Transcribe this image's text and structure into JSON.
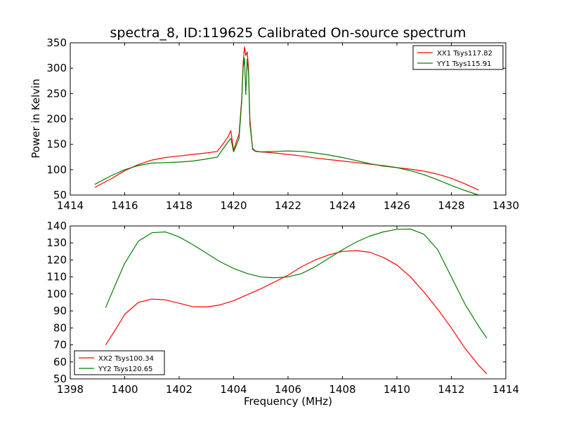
{
  "chart_data": [
    {
      "type": "line",
      "title": "spectra_8, ID:119625 Calibrated On-source spectrum",
      "xlabel": "",
      "ylabel": "Power in Kelvin",
      "xlim": [
        1414,
        1430
      ],
      "ylim": [
        50,
        350
      ],
      "xticks": [
        "1414",
        "1416",
        "1418",
        "1420",
        "1422",
        "1424",
        "1426",
        "1428",
        "1430"
      ],
      "yticks": [
        "50",
        "100",
        "150",
        "200",
        "250",
        "300",
        "350"
      ],
      "legend_position": "top-right",
      "series": [
        {
          "name": "XX1 Tsys117.82",
          "color": "#ff0000",
          "x": [
            1414.9,
            1415.5,
            1416.0,
            1416.5,
            1417.0,
            1417.5,
            1418.0,
            1418.5,
            1419.0,
            1419.4,
            1419.6,
            1419.8,
            1419.9,
            1420.0,
            1420.1,
            1420.2,
            1420.3,
            1420.35,
            1420.4,
            1420.45,
            1420.5,
            1420.55,
            1420.6,
            1420.7,
            1420.8,
            1421.0,
            1421.5,
            1422.0,
            1422.5,
            1423.0,
            1423.5,
            1424.0,
            1424.5,
            1425.0,
            1425.5,
            1426.0,
            1426.5,
            1427.0,
            1427.5,
            1428.0,
            1428.5,
            1429.0
          ],
          "y": [
            65,
            82,
            98,
            110,
            119,
            124,
            127,
            130,
            133,
            136,
            150,
            165,
            177,
            138,
            155,
            170,
            240,
            310,
            342,
            325,
            332,
            300,
            200,
            140,
            136,
            135,
            133,
            130,
            127,
            123,
            120,
            117,
            114,
            111,
            108,
            104,
            101,
            97,
            91,
            83,
            72,
            60
          ]
        },
        {
          "name": "YY1 Tsys115.91",
          "color": "#008000",
          "x": [
            1414.9,
            1415.5,
            1416.0,
            1416.5,
            1417.0,
            1417.5,
            1418.0,
            1418.5,
            1419.0,
            1419.4,
            1419.6,
            1419.8,
            1419.9,
            1420.0,
            1420.1,
            1420.2,
            1420.3,
            1420.35,
            1420.4,
            1420.45,
            1420.5,
            1420.55,
            1420.6,
            1420.7,
            1420.8,
            1421.0,
            1421.5,
            1422.0,
            1422.5,
            1423.0,
            1423.5,
            1424.0,
            1424.5,
            1425.0,
            1425.5,
            1426.0,
            1426.5,
            1427.0,
            1427.5,
            1428.0,
            1428.5,
            1429.0
          ],
          "y": [
            71,
            88,
            100,
            108,
            113,
            114,
            115,
            117,
            121,
            125,
            140,
            155,
            162,
            135,
            148,
            162,
            235,
            300,
            320,
            248,
            318,
            290,
            190,
            142,
            137,
            135,
            136,
            137,
            136,
            133,
            129,
            124,
            118,
            112,
            107,
            104,
            98,
            90,
            80,
            69,
            59,
            50
          ]
        }
      ]
    },
    {
      "type": "line",
      "title": "",
      "xlabel": "Frequency (MHz)",
      "ylabel": "",
      "xlim": [
        1398,
        1414
      ],
      "ylim": [
        50,
        140
      ],
      "xticks": [
        "1398",
        "1400",
        "1402",
        "1404",
        "1406",
        "1408",
        "1410",
        "1412",
        "1414"
      ],
      "yticks": [
        "50",
        "60",
        "70",
        "80",
        "90",
        "100",
        "110",
        "120",
        "130",
        "140"
      ],
      "legend_position": "bottom-left",
      "series": [
        {
          "name": "XX2 Tsys100.34",
          "color": "#ff0000",
          "x": [
            1399.3,
            1399.7,
            1400.0,
            1400.5,
            1401.0,
            1401.5,
            1402.0,
            1402.5,
            1403.0,
            1403.5,
            1404.0,
            1404.5,
            1405.0,
            1405.5,
            1406.0,
            1406.5,
            1407.0,
            1407.5,
            1408.0,
            1408.5,
            1409.0,
            1409.5,
            1410.0,
            1410.5,
            1411.0,
            1411.5,
            1412.0,
            1412.5,
            1413.0,
            1413.3
          ],
          "y": [
            70,
            80,
            88,
            95,
            97,
            96.5,
            94.5,
            92.5,
            92.3,
            93.5,
            96,
            99.5,
            103,
            107,
            111,
            116,
            120,
            123,
            125,
            125.5,
            124.5,
            121.5,
            117,
            110,
            101,
            91,
            80,
            68,
            58,
            53
          ]
        },
        {
          "name": "YY2 Tsys120.65",
          "color": "#008000",
          "x": [
            1399.3,
            1399.7,
            1400.0,
            1400.5,
            1401.0,
            1401.5,
            1402.0,
            1402.5,
            1403.0,
            1403.5,
            1404.0,
            1404.5,
            1405.0,
            1405.5,
            1406.0,
            1406.5,
            1407.0,
            1407.5,
            1408.0,
            1408.5,
            1409.0,
            1409.5,
            1410.0,
            1410.5,
            1411.0,
            1411.5,
            1412.0,
            1412.5,
            1413.0,
            1413.3
          ],
          "y": [
            92,
            107,
            118,
            131,
            136,
            136.5,
            133.5,
            129,
            124,
            119,
            115,
            112,
            110,
            109.5,
            110,
            112,
            116,
            121,
            126,
            130.5,
            134,
            136.5,
            138,
            138.2,
            135,
            126,
            110,
            94,
            81,
            74
          ]
        }
      ]
    }
  ]
}
